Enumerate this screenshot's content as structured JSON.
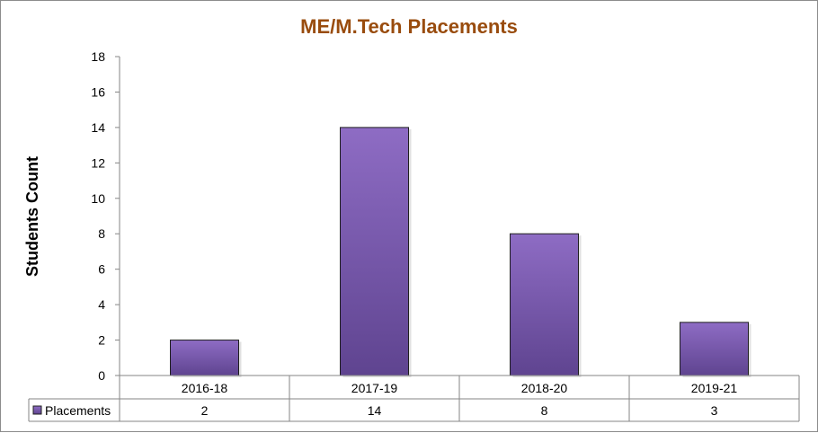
{
  "colors": {
    "title": "#994c0e",
    "bar_light": "#8e6cc4",
    "bar_dark": "#5f4490",
    "bar_edge": "#1f1f1f"
  },
  "chart_data": {
    "type": "bar",
    "title": "ME/M.Tech Placements",
    "xlabel": "",
    "ylabel": "Students Count",
    "categories": [
      "2016-18",
      "2017-19",
      "2018-20",
      "2019-21"
    ],
    "series": [
      {
        "name": "Placements",
        "values": [
          2,
          14,
          8,
          3
        ]
      }
    ],
    "ylim": [
      0,
      18
    ],
    "yticks": [
      0,
      2,
      4,
      6,
      8,
      10,
      12,
      14,
      16,
      18
    ],
    "grid": false,
    "legend": "data-table-left",
    "data_table": true
  }
}
